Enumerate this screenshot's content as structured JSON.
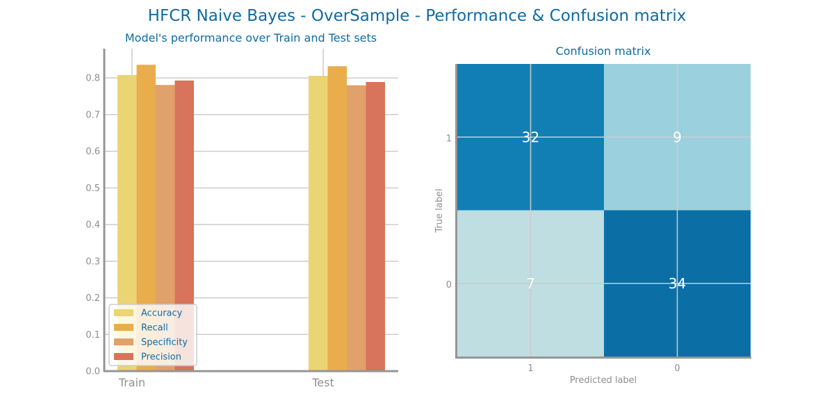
{
  "suptitle": "HFCR Naive Bayes - OverSample - Performance & Confusion matrix",
  "colors": {
    "title": "#106ba0",
    "axis": "#959595",
    "grid": "#cccccc",
    "tick_text": "#8e8e8e",
    "series": [
      "#ebd473",
      "#e9ad4c",
      "#e0a16a",
      "#d8735c"
    ],
    "cm_scale": [
      "#bedee2",
      "#9bd0de",
      "#117fb3",
      "#0b6fa6"
    ]
  },
  "chart_data": [
    {
      "type": "bar",
      "title": "Model's performance over Train and Test sets",
      "categories": [
        "Train",
        "Test"
      ],
      "series": [
        {
          "name": "Accuracy",
          "values": [
            0.808,
            0.806
          ]
        },
        {
          "name": "Recall",
          "values": [
            0.836,
            0.832
          ]
        },
        {
          "name": "Specificity",
          "values": [
            0.781,
            0.78
          ]
        },
        {
          "name": "Precision",
          "values": [
            0.793,
            0.789
          ]
        }
      ],
      "ylim": [
        0,
        0.88
      ],
      "yticks": [
        "0.0",
        "0.1",
        "0.2",
        "0.3",
        "0.4",
        "0.5",
        "0.6",
        "0.7",
        "0.8"
      ],
      "xlabel": "",
      "ylabel": "",
      "grid": true,
      "legend_position": "lower-left"
    },
    {
      "type": "heatmap",
      "title": "Confusion matrix",
      "xlabel": "Predicted label",
      "ylabel": "True label",
      "x_categories": [
        "1",
        "0"
      ],
      "y_categories": [
        "1",
        "0"
      ],
      "values": [
        [
          32,
          9
        ],
        [
          7,
          34
        ]
      ],
      "grid": true
    }
  ]
}
